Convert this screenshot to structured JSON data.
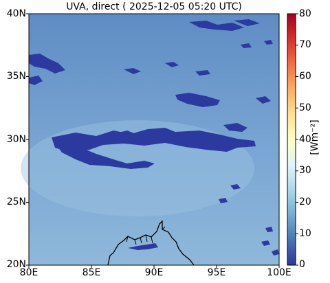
{
  "title": "UVA, direct ( 2025-12-05 05:20 UTC)",
  "map": {
    "lat_ticks": [
      "40N",
      "35N",
      "30N",
      "25N",
      "20N"
    ],
    "lon_ticks": [
      "80E",
      "85E",
      "90E",
      "95E",
      "100E"
    ],
    "extent": {
      "lon_min": 80,
      "lon_max": 100,
      "lat_min": 20,
      "lat_max": 40
    }
  },
  "colorbar": {
    "ticks": [
      "80",
      "70",
      "60",
      "50",
      "40",
      "30",
      "20",
      "10",
      "0"
    ],
    "unit_label": "[Wm⁻²]",
    "colormap": "RdYlBu_r",
    "range": [
      0,
      80
    ]
  },
  "colors": {
    "background_field": "#5f8cc4",
    "field_light": "#8fb8da",
    "cloud_patches": "#2c3aa0",
    "coastline": "#000000"
  }
}
